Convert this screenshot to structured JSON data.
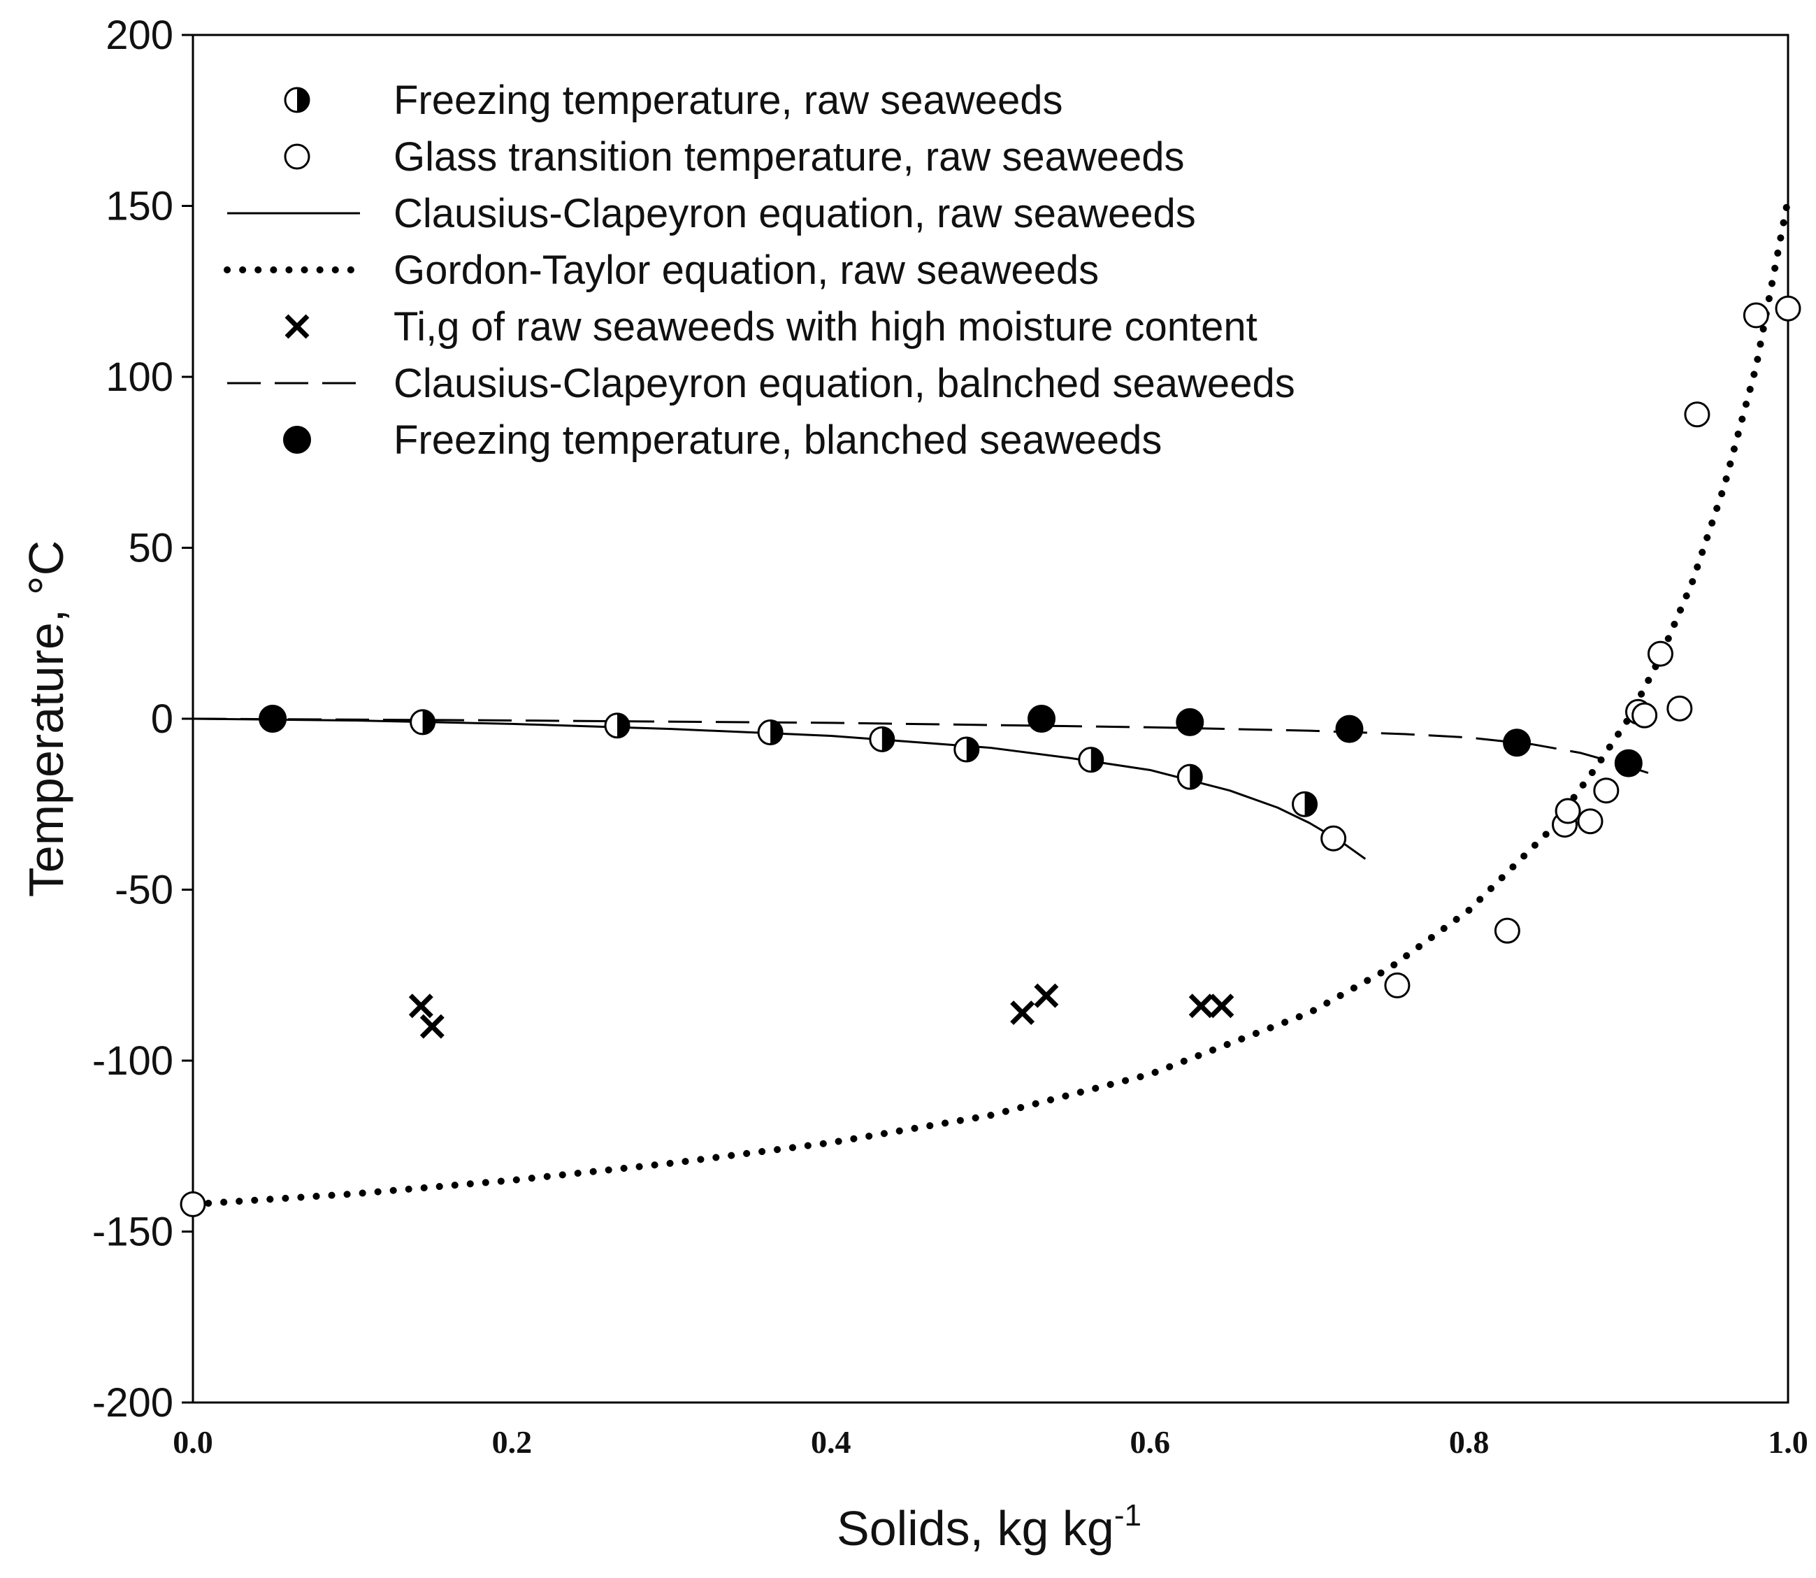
{
  "chart_data": {
    "type": "scatter",
    "title": "",
    "xlabel": "Solids, kg kg",
    "xlabel_sup": "-1",
    "ylabel": "Temperature, °C",
    "xlim": [
      0.0,
      1.0
    ],
    "ylim": [
      -200,
      200
    ],
    "x_ticks": [
      0.0,
      0.2,
      0.4,
      0.6,
      0.8,
      1.0
    ],
    "x_tick_labels": [
      "0.0",
      "0.2",
      "0.4",
      "0.6",
      "0.8",
      "1.0"
    ],
    "y_ticks": [
      200,
      150,
      100,
      50,
      0,
      -50,
      -100,
      -150,
      -200
    ],
    "y_tick_labels": [
      "200",
      "150",
      "100",
      "50",
      "0",
      "-50",
      "-100",
      "-150",
      "-200"
    ],
    "grid": false,
    "legend_position": "top-left",
    "series": [
      {
        "name": "Freezing temperature, raw seaweeds",
        "kind": "points",
        "marker": "half-filled-circle",
        "color": "#000000",
        "x": [
          0.144,
          0.266,
          0.362,
          0.432,
          0.485,
          0.563,
          0.625,
          0.697
        ],
        "y": [
          -1,
          -2,
          -4,
          -6,
          -9,
          -12,
          -17,
          -25
        ]
      },
      {
        "name": "Glass transition temperature, raw seaweeds",
        "kind": "points",
        "marker": "open-circle",
        "color": "#000000",
        "x": [
          0.0,
          0.715,
          0.755,
          0.824,
          0.86,
          0.862,
          0.876,
          0.886,
          0.906,
          0.91,
          0.92,
          0.932,
          0.943,
          0.98,
          1.0
        ],
        "y": [
          -142,
          -35,
          -78,
          -62,
          -31,
          -27,
          -30,
          -21,
          2,
          1,
          19,
          3,
          89,
          118,
          120
        ]
      },
      {
        "name": "Clausius-Clapeyron equation, raw seaweeds",
        "kind": "line",
        "line_style": "solid",
        "color": "#000000",
        "x": [
          0.0,
          0.1,
          0.2,
          0.3,
          0.4,
          0.5,
          0.55,
          0.6,
          0.65,
          0.68,
          0.7,
          0.72,
          0.735
        ],
        "y": [
          0,
          -0.5,
          -1.5,
          -3,
          -5,
          -8.5,
          -11.5,
          -15,
          -21,
          -26,
          -30.5,
          -36,
          -41
        ]
      },
      {
        "name": "Gordon-Taylor equation, raw seaweeds",
        "kind": "line",
        "line_style": "dotted",
        "color": "#000000",
        "x": [
          0.0,
          0.1,
          0.2,
          0.3,
          0.4,
          0.5,
          0.6,
          0.7,
          0.75,
          0.8,
          0.85,
          0.88,
          0.9,
          0.92,
          0.94,
          0.96,
          0.98,
          1.0
        ],
        "y": [
          -142,
          -139,
          -135,
          -130,
          -124,
          -116,
          -104,
          -86,
          -73,
          -56,
          -33,
          -14,
          0,
          18,
          40,
          68,
          103,
          152
        ]
      },
      {
        "name": "Ti,g of raw seaweeds with high moisture content",
        "kind": "points",
        "marker": "x",
        "color": "#000000",
        "x": [
          0.143,
          0.15,
          0.52,
          0.535,
          0.632,
          0.645
        ],
        "y": [
          -84,
          -90,
          -86,
          -81,
          -84,
          -84
        ]
      },
      {
        "name": "Clausius-Clapeyron equation, balnched seaweeds",
        "kind": "line",
        "line_style": "dashed",
        "color": "#000000",
        "x": [
          0.0,
          0.2,
          0.4,
          0.6,
          0.7,
          0.76,
          0.8,
          0.84,
          0.87,
          0.9,
          0.92
        ],
        "y": [
          0,
          -0.5,
          -1.2,
          -2.5,
          -3.5,
          -4.5,
          -5.5,
          -7.5,
          -10,
          -14,
          -17
        ]
      },
      {
        "name": "Freezing temperature, blanched seaweeds",
        "kind": "points",
        "marker": "filled-circle",
        "color": "#000000",
        "x": [
          0.05,
          0.532,
          0.625,
          0.725,
          0.83,
          0.9
        ],
        "y": [
          0,
          0,
          -1,
          -3,
          -7,
          -13
        ]
      }
    ]
  }
}
